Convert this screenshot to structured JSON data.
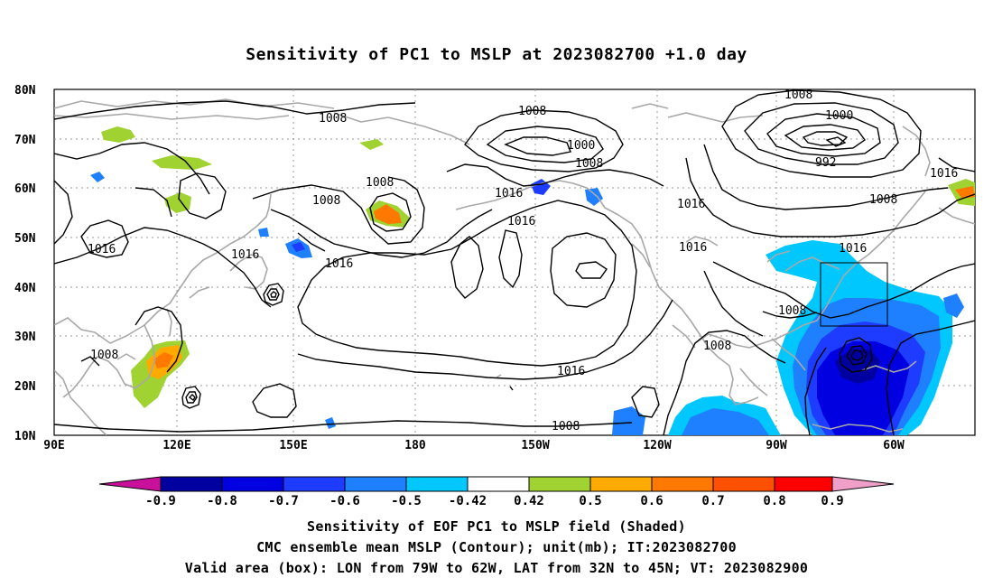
{
  "title": "Sensitivity of PC1 to MSLP at 2023082700 +1.0 day",
  "map": {
    "lat_labels": [
      "80N",
      "70N",
      "60N",
      "50N",
      "40N",
      "30N",
      "20N",
      "10N"
    ],
    "lon_labels": [
      "90E",
      "120E",
      "150E",
      "180",
      "150W",
      "120W",
      "90W",
      "60W"
    ],
    "contour_labels": [
      "1008",
      "1008",
      "1000",
      "1008",
      "1008",
      "1000",
      "992",
      "1016",
      "1008",
      "1008",
      "1016",
      "1016",
      "1016",
      "1016",
      "1016",
      "1008",
      "1008",
      "1008",
      "1016",
      "1008"
    ],
    "valid_box": {
      "lon_from": "79W",
      "lon_to": "62W",
      "lat_from": "32N",
      "lat_to": "45N"
    },
    "colors": {
      "neg_09": "#a000c8",
      "neg_08": "#0000a0",
      "neg_07": "#0000e0",
      "neg_06": "#1e3cff",
      "neg_05": "#1e80ff",
      "neg_042": "#00c8ff",
      "neutral": "#ffffff",
      "pos_042": "#a0d232",
      "pos_05": "#ffaa00",
      "pos_06": "#ff7800",
      "pos_07": "#ff5000",
      "pos_08": "#ff0000",
      "pos_09": "#f0a0c8",
      "coastline": "#a8a8a8",
      "contour": "#000000"
    }
  },
  "colorbar": {
    "labels": [
      "-0.9",
      "-0.8",
      "-0.7",
      "-0.6",
      "-0.5",
      "-0.42",
      "0.42",
      "0.5",
      "0.6",
      "0.7",
      "0.8",
      "0.9"
    ]
  },
  "captions": [
    "Sensitivity of EOF PC1 to MSLP field (Shaded)",
    "CMC ensemble mean MSLP (Contour); unit(mb); IT:2023082700",
    "Valid area (box): LON from 79W to 62W, LAT from 32N to 45N; VT: 2023082900"
  ]
}
